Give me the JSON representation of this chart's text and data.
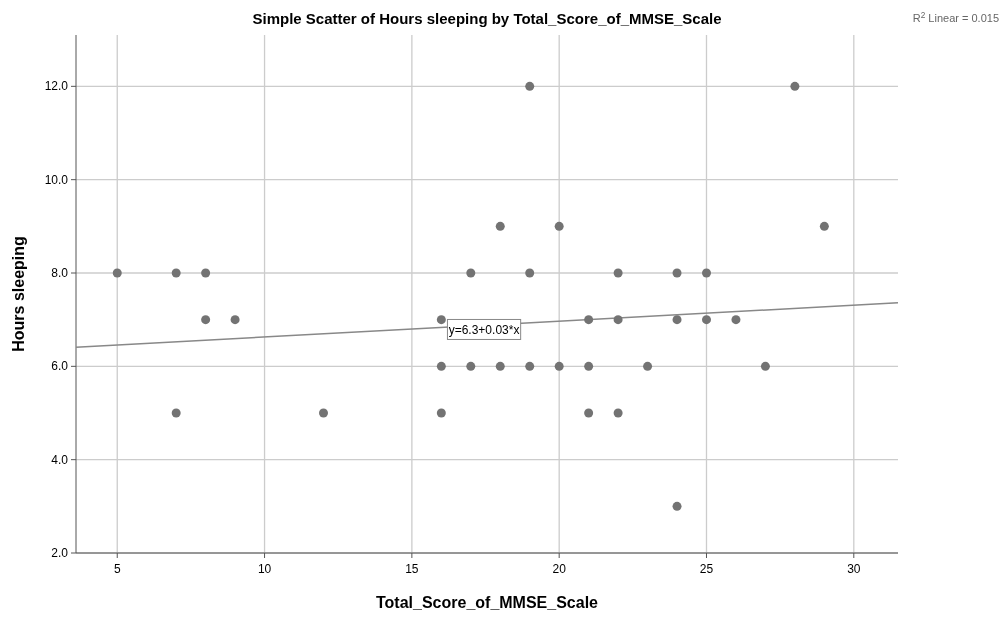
{
  "chart_data": {
    "type": "scatter",
    "title": "Simple Scatter of Hours sleeping by Total_Score_of_MMSE_Scale",
    "xlabel": "Total_Score_of_MMSE_Scale",
    "ylabel": "Hours sleeping",
    "xlim": [
      3.6,
      31.5
    ],
    "xticks": [
      5,
      10,
      15,
      20,
      25,
      30
    ],
    "ylim": [
      2,
      13.1
    ],
    "yticks": [
      {
        "value": 2,
        "label": "2.0"
      },
      {
        "value": 4,
        "label": "4.0"
      },
      {
        "value": 6,
        "label": "6.0"
      },
      {
        "value": 8,
        "label": "8.0"
      },
      {
        "value": 10,
        "label": "10.0"
      },
      {
        "value": 12,
        "label": "12.0"
      }
    ],
    "grid": true,
    "series": [
      {
        "marker": "circle",
        "color": "#737373",
        "x": [
          5,
          7,
          8,
          8,
          9,
          7,
          12,
          16,
          16,
          16,
          17,
          17,
          18,
          18,
          19,
          19,
          19,
          20,
          20,
          21,
          21,
          21,
          22,
          22,
          22,
          23,
          24,
          24,
          24,
          25,
          25,
          26,
          27,
          28,
          29
        ],
        "values": [
          8,
          8,
          8,
          7,
          7,
          5,
          5,
          7,
          6,
          5,
          8,
          6,
          9,
          6,
          12,
          8,
          6,
          9,
          6,
          7,
          6,
          5,
          8,
          7,
          5,
          6,
          8,
          7,
          3,
          8,
          7,
          7,
          6,
          12,
          9
        ]
      },
      {
        "type": "line",
        "marker": "none",
        "color": "#888888",
        "x": [
          3.6,
          31.5
        ],
        "values": [
          6.41,
          7.36
        ]
      }
    ],
    "annotations": [
      "R$^{2}$ Linear = 0.015",
      {
        "text": "y=6.3+0.03*x",
        "x": 17.45,
        "y": 6.79
      }
    ]
  }
}
